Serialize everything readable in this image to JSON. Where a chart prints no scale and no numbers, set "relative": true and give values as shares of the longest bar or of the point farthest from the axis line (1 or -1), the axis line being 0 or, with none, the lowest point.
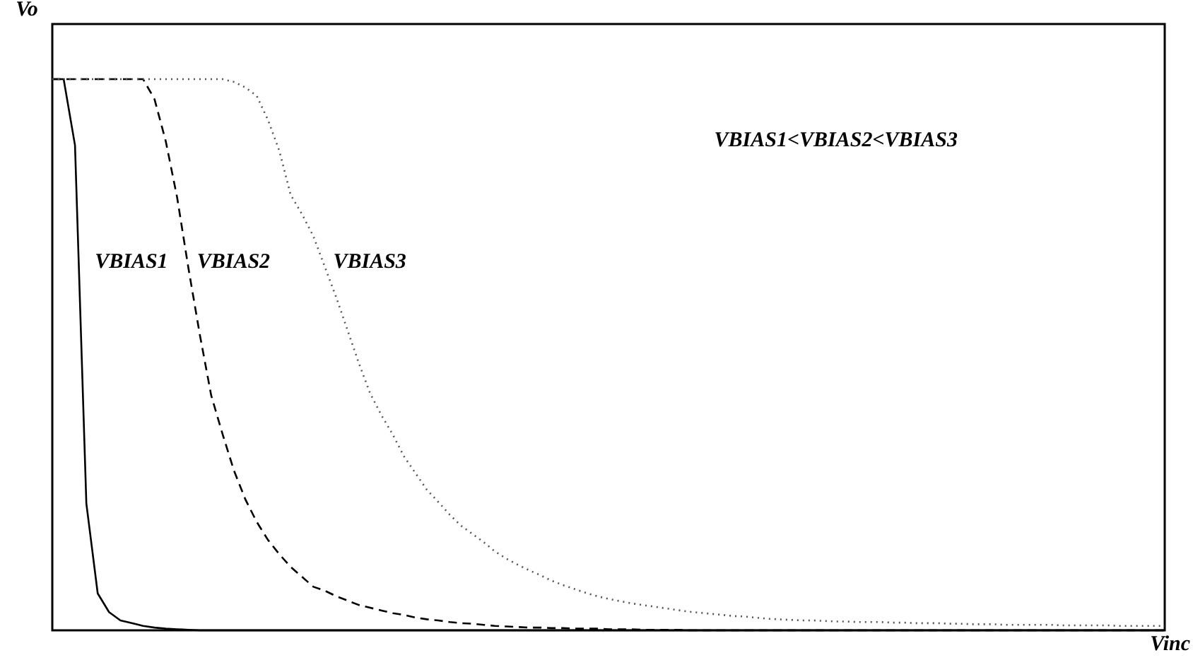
{
  "chart_data": {
    "type": "line",
    "relative": true,
    "tick_labels": false,
    "xlabel": "Vinc",
    "ylabel": "Vo",
    "annotations": [
      "VBIAS1<VBIAS2<VBIAS3"
    ],
    "categories": [
      null,
      null,
      null,
      null,
      null,
      null,
      null,
      null,
      null,
      null,
      null,
      null,
      null,
      null,
      null,
      null,
      null,
      null,
      null,
      null,
      null,
      null,
      null,
      null,
      null,
      null,
      null,
      null,
      null,
      null,
      null,
      null,
      null,
      null,
      null,
      null,
      null,
      null,
      null,
      null,
      null,
      null,
      null,
      null,
      null,
      null,
      null,
      null,
      null,
      null,
      null,
      null,
      null,
      null,
      null,
      null,
      null,
      null,
      null,
      null,
      null,
      null,
      null,
      null,
      null,
      null,
      null,
      null,
      null,
      null,
      null,
      null,
      null,
      null,
      null,
      null,
      null,
      null,
      null,
      null,
      null,
      null,
      null,
      null,
      null,
      null,
      null,
      null,
      null,
      null,
      null,
      null,
      null,
      null,
      null,
      null,
      null,
      null,
      null
    ],
    "series": [
      {
        "name": "VBIAS1",
        "color": "#000000",
        "line_style": "solid",
        "values": [
          1,
          1,
          0.88,
          0.23,
          0.067,
          0.033,
          0.018,
          0.013,
          0.008,
          0.005,
          0.003,
          0.002,
          0.001,
          0,
          0,
          0,
          0,
          0,
          0,
          0,
          0,
          0,
          0,
          0,
          0,
          0,
          0,
          0,
          0,
          0,
          0,
          0,
          0,
          0,
          0,
          0,
          0,
          0,
          0,
          0,
          0,
          0,
          0,
          0,
          0,
          0,
          0,
          0,
          0,
          0,
          0,
          0,
          0,
          0,
          0,
          0,
          0,
          0,
          0,
          0,
          0,
          0,
          0,
          0,
          0,
          0,
          0,
          0,
          0,
          0,
          0,
          0,
          0,
          0,
          0,
          0,
          0,
          0,
          0,
          0,
          0,
          0,
          0,
          0,
          0,
          0,
          0,
          0,
          0,
          0,
          0,
          0,
          0,
          0,
          0,
          0,
          0,
          0,
          0
        ]
      },
      {
        "name": "VBIAS2",
        "color": "#000000",
        "line_style": "dashed",
        "values": [
          1,
          1,
          1,
          1,
          1,
          1,
          1,
          1,
          1,
          0.964,
          0.887,
          0.785,
          0.656,
          0.536,
          0.426,
          0.356,
          0.29,
          0.238,
          0.197,
          0.164,
          0.138,
          0.115,
          0.097,
          0.079,
          0.072,
          0.062,
          0.054,
          0.046,
          0.041,
          0.036,
          0.031,
          0.028,
          0.023,
          0.02,
          0.018,
          0.015,
          0.013,
          0.012,
          0.01,
          0.008,
          0.007,
          0.006,
          0.005,
          0.005,
          0.004,
          0.004,
          0.003,
          0.003,
          0.003,
          0.002,
          0.002,
          0.002,
          0.001,
          0.001,
          0.001,
          0.001,
          0,
          0,
          0,
          0,
          0,
          0,
          0,
          0,
          0,
          0,
          0,
          0,
          0,
          0,
          0,
          0,
          0,
          0,
          0,
          0,
          0,
          0,
          0,
          0,
          0,
          0,
          0,
          0,
          0,
          0,
          0,
          0,
          0,
          0,
          0,
          0,
          0,
          0,
          0,
          0,
          0,
          0,
          0
        ]
      },
      {
        "name": "VBIAS3",
        "color": "#555555",
        "line_style": "dotted",
        "values": [
          1,
          1,
          1,
          1,
          1,
          1,
          1,
          1,
          1,
          1,
          1,
          1,
          1,
          1,
          1,
          1,
          0.995,
          0.985,
          0.97,
          0.926,
          0.87,
          0.79,
          0.755,
          0.715,
          0.66,
          0.605,
          0.545,
          0.485,
          0.43,
          0.39,
          0.355,
          0.315,
          0.285,
          0.255,
          0.233,
          0.21,
          0.19,
          0.175,
          0.16,
          0.143,
          0.13,
          0.119,
          0.109,
          0.1,
          0.09,
          0.082,
          0.075,
          0.068,
          0.062,
          0.057,
          0.053,
          0.049,
          0.046,
          0.043,
          0.04,
          0.037,
          0.034,
          0.032,
          0.03,
          0.028,
          0.026,
          0.025,
          0.023,
          0.021,
          0.02,
          0.019,
          0.018,
          0.018,
          0.017,
          0.016,
          0.016,
          0.015,
          0.015,
          0.015,
          0.014,
          0.014,
          0.013,
          0.013,
          0.013,
          0.012,
          0.012,
          0.011,
          0.011,
          0.011,
          0.01,
          0.01,
          0.01,
          0.01,
          0.01,
          0.009,
          0.009,
          0.009,
          0.009,
          0.009,
          0.008,
          0.008,
          0.008,
          0.008,
          0.008
        ]
      }
    ]
  }
}
